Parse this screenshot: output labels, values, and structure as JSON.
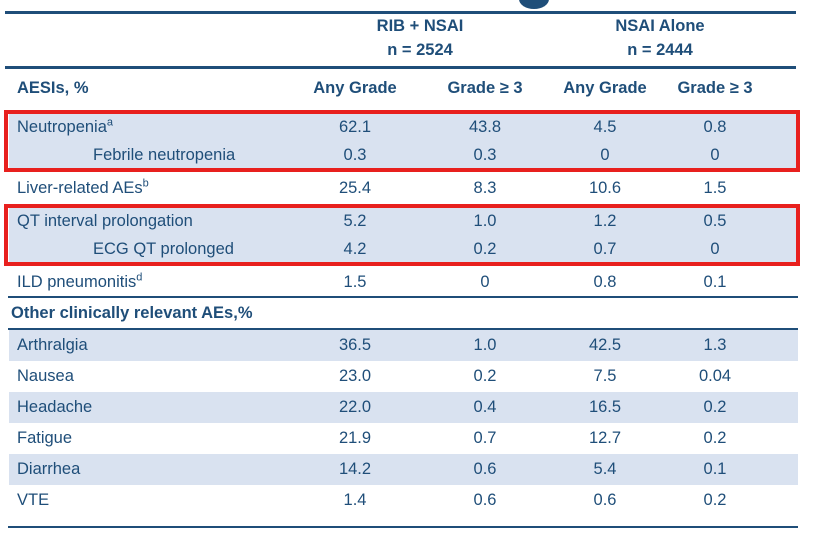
{
  "colors": {
    "navy_text": "#1F4E79",
    "shaded_row_blue": "#D9E2F0",
    "highlight_red": "#E8201E",
    "background": "#FFFFFF"
  },
  "table": {
    "groups": [
      {
        "label": "RIB + NSAI",
        "n": "n = 2524"
      },
      {
        "label": "NSAI Alone",
        "n": "n = 2444"
      }
    ],
    "columns": [
      "AESIs, %",
      "Any Grade",
      "Grade ≥ 3",
      "Any Grade",
      "Grade ≥ 3"
    ],
    "aesi_rows": [
      {
        "label": "Neutropenia",
        "sup": "a",
        "indent": false,
        "shaded": true,
        "highlight_box": 1,
        "values": [
          "62.1",
          "43.8",
          "4.5",
          "0.8"
        ]
      },
      {
        "label": "Febrile neutropenia",
        "sup": "",
        "indent": true,
        "shaded": true,
        "highlight_box": 1,
        "values": [
          "0.3",
          "0.3",
          "0",
          "0"
        ]
      },
      {
        "label": "Liver-related AEs",
        "sup": "b",
        "indent": false,
        "shaded": false,
        "highlight_box": 0,
        "values": [
          "25.4",
          "8.3",
          "10.6",
          "1.5"
        ]
      },
      {
        "label": "QT interval prolongation",
        "sup": "",
        "indent": false,
        "shaded": true,
        "highlight_box": 2,
        "values": [
          "5.2",
          "1.0",
          "1.2",
          "0.5"
        ]
      },
      {
        "label": "ECG QT prolonged",
        "sup": "",
        "indent": true,
        "shaded": true,
        "highlight_box": 2,
        "values": [
          "4.2",
          "0.2",
          "0.7",
          "0"
        ]
      },
      {
        "label": "ILD pneumonitis",
        "sup": "d",
        "indent": false,
        "shaded": false,
        "highlight_box": 0,
        "values": [
          "1.5",
          "0",
          "0.8",
          "0.1"
        ]
      }
    ],
    "section_header": "Other clinically relevant AEs,%",
    "other_rows": [
      {
        "label": "Arthralgia",
        "shaded": true,
        "values": [
          "36.5",
          "1.0",
          "42.5",
          "1.3"
        ]
      },
      {
        "label": "Nausea",
        "shaded": false,
        "values": [
          "23.0",
          "0.2",
          "7.5",
          "0.04"
        ]
      },
      {
        "label": "Headache",
        "shaded": true,
        "values": [
          "22.0",
          "0.4",
          "16.5",
          "0.2"
        ]
      },
      {
        "label": "Fatigue",
        "shaded": false,
        "values": [
          "21.9",
          "0.7",
          "12.7",
          "0.2"
        ]
      },
      {
        "label": "Diarrhea",
        "shaded": true,
        "values": [
          "14.2",
          "0.6",
          "5.4",
          "0.1"
        ]
      },
      {
        "label": "VTE",
        "shaded": false,
        "values": [
          "1.4",
          "0.6",
          "0.6",
          "0.2"
        ]
      }
    ]
  }
}
